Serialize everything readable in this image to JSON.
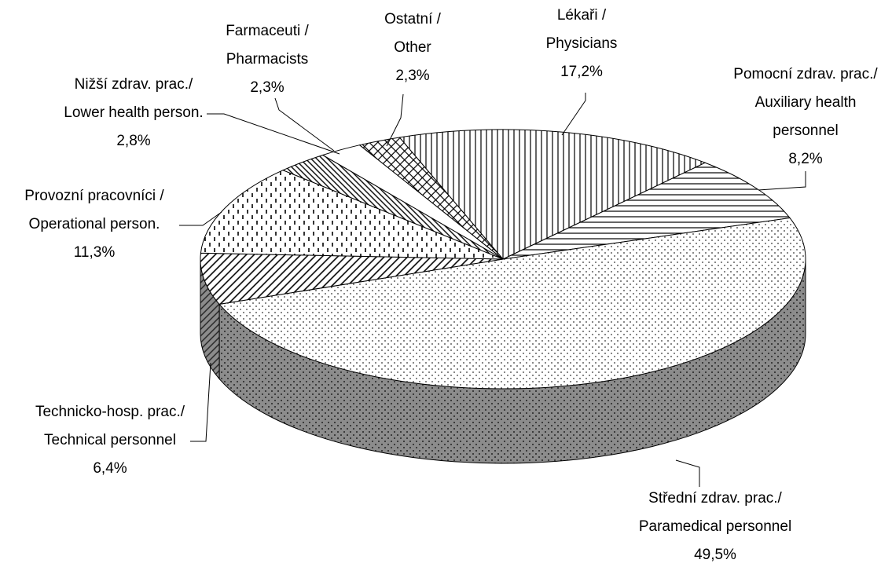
{
  "chart_data": {
    "type": "pie3d",
    "categories": [
      [
        "Lékaři /",
        "Physicians"
      ],
      [
        "Pomocní zdrav. prac./",
        "Auxiliary health",
        "personnel"
      ],
      [
        "Střední zdrav. prac./",
        "Paramedical personnel"
      ],
      [
        "Technicko-hosp. prac./",
        "Technical personnel"
      ],
      [
        "Provozní pracovníci /",
        "Operational person."
      ],
      [
        "Nižší zdrav. prac./",
        "Lower health person."
      ],
      [
        "Farmaceuti /",
        "Pharmacists"
      ],
      [
        "Ostatní /",
        "Other"
      ]
    ],
    "values": [
      17.2,
      8.2,
      49.5,
      6.4,
      11.3,
      2.8,
      2.3,
      2.3
    ],
    "value_labels": [
      "17,2%",
      "8,2%",
      "49,5%",
      "6,4%",
      "11,3%",
      "2,8%",
      "2,3%",
      "2,3%"
    ],
    "patterns": [
      "vlines",
      "hlines",
      "dots",
      "diag",
      "dashes",
      "diagdense",
      "plain",
      "cross"
    ]
  }
}
